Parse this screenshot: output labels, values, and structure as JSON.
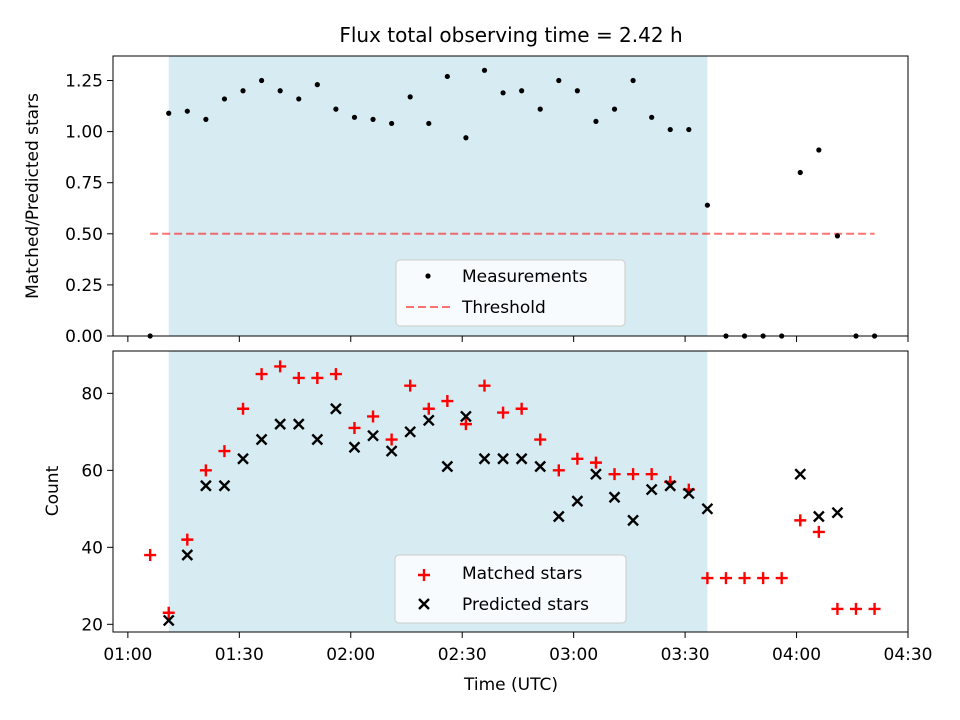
{
  "figure": {
    "title": "Flux total observing time = 2.42 h"
  },
  "colors": {
    "shade": "#add8e6",
    "measurement": "#000000",
    "threshold": "#ff0000",
    "matched": "#ff0000",
    "predicted": "#000000"
  },
  "chart_data": [
    {
      "type": "scatter",
      "panel": "top",
      "ylabel": "Matched/Predicted stars",
      "xlabel": "",
      "ylim": [
        0,
        1.37
      ],
      "yticks": [
        "0.00",
        "0.25",
        "0.50",
        "0.75",
        "1.00",
        "1.25"
      ],
      "grid": false,
      "legend_position": "lower-center",
      "shaded_interval": [
        "01:11",
        "03:36"
      ],
      "threshold": {
        "name": "Threshold",
        "value": 0.5,
        "x_range": [
          "01:06",
          "04:21"
        ]
      },
      "series": [
        {
          "name": "Measurements",
          "x": [
            "01:06",
            "01:11",
            "01:16",
            "01:21",
            "01:26",
            "01:31",
            "01:36",
            "01:41",
            "01:46",
            "01:51",
            "01:56",
            "02:01",
            "02:06",
            "02:11",
            "02:16",
            "02:21",
            "02:26",
            "02:31",
            "02:36",
            "02:41",
            "02:46",
            "02:51",
            "02:56",
            "03:01",
            "03:06",
            "03:11",
            "03:16",
            "03:21",
            "03:26",
            "03:31",
            "03:36",
            "03:41",
            "03:46",
            "03:51",
            "03:56",
            "04:01",
            "04:06",
            "04:11",
            "04:16",
            "04:21"
          ],
          "y": [
            0,
            1.09,
            1.1,
            1.06,
            1.16,
            1.2,
            1.25,
            1.2,
            1.16,
            1.23,
            1.11,
            1.07,
            1.06,
            1.04,
            1.17,
            1.04,
            1.27,
            0.97,
            1.3,
            1.19,
            1.2,
            1.11,
            1.25,
            1.2,
            1.05,
            1.11,
            1.25,
            1.07,
            1.01,
            1.01,
            0.64,
            0,
            0,
            0,
            0,
            0.8,
            0.91,
            0.49,
            0,
            0
          ]
        }
      ]
    },
    {
      "type": "scatter",
      "panel": "bottom",
      "ylabel": "Count",
      "xlabel": "Time (UTC)",
      "ylim": [
        18,
        91
      ],
      "yticks": [
        "20",
        "40",
        "60",
        "80"
      ],
      "xlim": [
        "00:56",
        "04:30"
      ],
      "xticks": [
        "01:00",
        "01:30",
        "02:00",
        "02:30",
        "03:00",
        "03:30",
        "04:00",
        "04:30"
      ],
      "grid": false,
      "legend_position": "lower-center",
      "shaded_interval": [
        "01:11",
        "03:36"
      ],
      "series": [
        {
          "name": "Matched stars",
          "marker": "+",
          "x": [
            "01:06",
            "01:11",
            "01:16",
            "01:21",
            "01:26",
            "01:31",
            "01:36",
            "01:41",
            "01:46",
            "01:51",
            "01:56",
            "02:01",
            "02:06",
            "02:11",
            "02:16",
            "02:21",
            "02:26",
            "02:31",
            "02:36",
            "02:41",
            "02:46",
            "02:51",
            "02:56",
            "03:01",
            "03:06",
            "03:11",
            "03:16",
            "03:21",
            "03:26",
            "03:31",
            "03:36",
            "03:41",
            "03:46",
            "03:51",
            "03:56",
            "04:01",
            "04:06",
            "04:11",
            "04:16",
            "04:21"
          ],
          "y": [
            38,
            23,
            42,
            60,
            65,
            76,
            85,
            87,
            84,
            84,
            85,
            71,
            74,
            68,
            82,
            76,
            78,
            72,
            82,
            75,
            76,
            68,
            60,
            63,
            62,
            59,
            59,
            59,
            57,
            55,
            32,
            32,
            32,
            32,
            32,
            47,
            44,
            24,
            24,
            24
          ]
        },
        {
          "name": "Predicted stars",
          "marker": "x",
          "x": [
            "01:11",
            "01:16",
            "01:21",
            "01:26",
            "01:31",
            "01:36",
            "01:41",
            "01:46",
            "01:51",
            "01:56",
            "02:01",
            "02:06",
            "02:11",
            "02:16",
            "02:21",
            "02:26",
            "02:31",
            "02:36",
            "02:41",
            "02:46",
            "02:51",
            "02:56",
            "03:01",
            "03:06",
            "03:11",
            "03:16",
            "03:21",
            "03:26",
            "03:31",
            "03:36",
            "04:01",
            "04:06",
            "04:11"
          ],
          "y": [
            21,
            38,
            56,
            56,
            63,
            68,
            72,
            72,
            68,
            76,
            66,
            69,
            65,
            70,
            73,
            61,
            74,
            63,
            63,
            63,
            61,
            48,
            52,
            59,
            53,
            47,
            55,
            56,
            54,
            50,
            59,
            48,
            49
          ]
        }
      ]
    }
  ]
}
